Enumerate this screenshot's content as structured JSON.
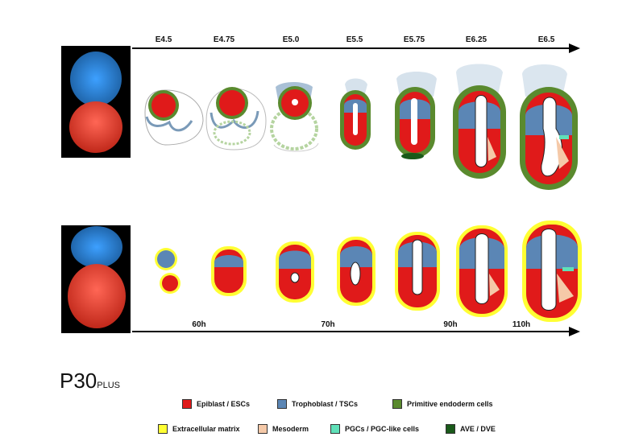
{
  "top_stages": [
    "E4.5",
    "E4.75",
    "E5.0",
    "E5.5",
    "E5.75",
    "E6.25",
    "E6.5"
  ],
  "bottom_times": [
    "60h",
    "70h",
    "90h",
    "110h"
  ],
  "brand": {
    "main": "P30",
    "suffix": "PLUS"
  },
  "legend": [
    {
      "label": "Epiblast / ESCs",
      "color": "#e01a1a"
    },
    {
      "label": "Trophoblast / TSCs",
      "color": "#5b86b5"
    },
    {
      "label": "Primitive endoderm cells",
      "color": "#5a8a2e"
    },
    {
      "label": "Extracellular matrix",
      "color": "#ffff33"
    },
    {
      "label": "Mesoderm",
      "color": "#f5c9a8"
    },
    {
      "label": "PGCs / PGC-like cells",
      "color": "#5fe0b8"
    },
    {
      "label": "AVE / DVE",
      "color": "#1a5a1a"
    }
  ]
}
